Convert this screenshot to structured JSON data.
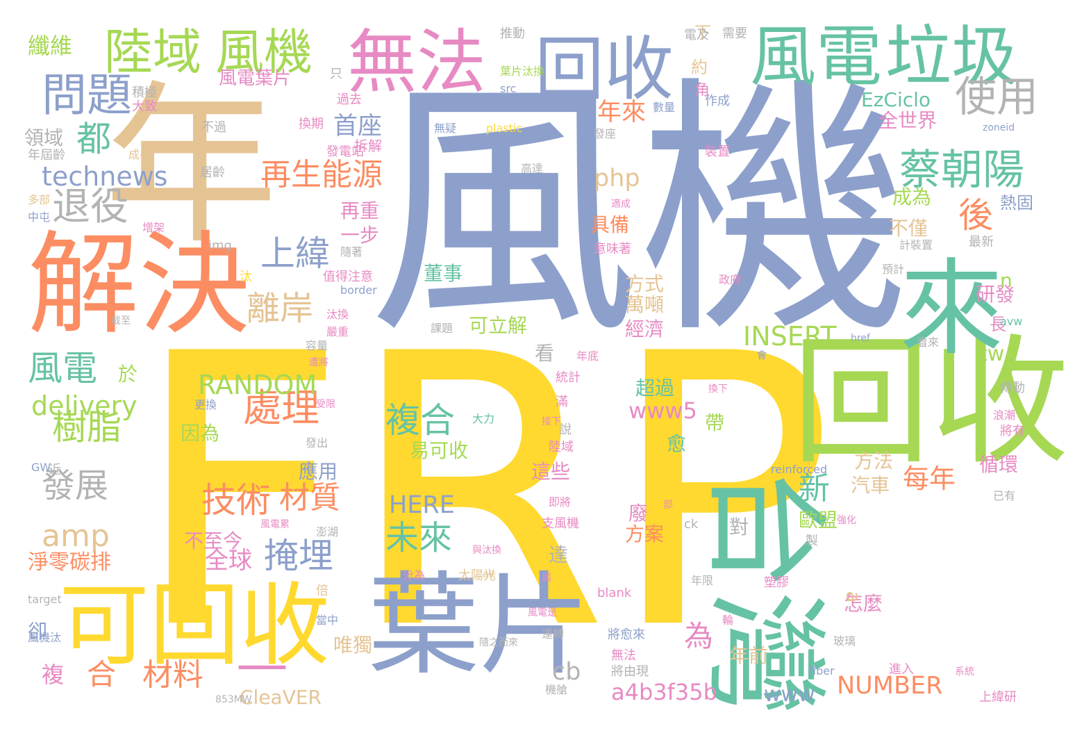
{
  "cloud": {
    "words": [
      {
        "text": "風機",
        "color": "#8da0cb"
      },
      {
        "text": "FRP",
        "color": "#ffd92f"
      },
      {
        "text": "年",
        "color": "#e5c494"
      },
      {
        "text": "台灣",
        "color": "#66c2a5"
      },
      {
        "text": "回收",
        "color": "#a6d854"
      },
      {
        "text": "解決",
        "color": "#fc8d62"
      },
      {
        "text": "葉片",
        "color": "#8da0cb"
      },
      {
        "text": "無法",
        "color": "#e78ac3"
      },
      {
        "text": "回收",
        "color": "#8da0cb"
      },
      {
        "text": "風電",
        "color": "#66c2a5"
      },
      {
        "text": "垃圾",
        "color": "#66c2a5"
      },
      {
        "text": "可回收",
        "color": "#ffd92f"
      },
      {
        "text": "陸域",
        "color": "#a6d854"
      },
      {
        "text": "風機",
        "color": "#a6d854"
      },
      {
        "text": "來",
        "color": "#66c2a5"
      },
      {
        "text": "—",
        "color": "#e78ac3"
      },
      {
        "text": "問題",
        "color": "#8da0cb"
      },
      {
        "text": "蔡朝陽",
        "color": "#66c2a5"
      },
      {
        "text": "使用",
        "color": "#b3b3b3"
      },
      {
        "text": "退役",
        "color": "#b3b3b3"
      },
      {
        "text": "都",
        "color": "#66c2a5"
      },
      {
        "text": "technews",
        "color": "#8da0cb"
      },
      {
        "text": "再生能源",
        "color": "#fc8d62"
      },
      {
        "text": "首座",
        "color": "#8da0cb"
      },
      {
        "text": "年來",
        "color": "#fc8d62"
      },
      {
        "text": "後",
        "color": "#fc8d62"
      },
      {
        "text": "上緯",
        "color": "#8da0cb"
      },
      {
        "text": "離岸",
        "color": "#e5c494"
      },
      {
        "text": "技術",
        "color": "#fc8d62"
      },
      {
        "text": "材質",
        "color": "#fc8d62"
      },
      {
        "text": "處理",
        "color": "#fc8d62"
      },
      {
        "text": "複合",
        "color": "#66c2a5"
      },
      {
        "text": "未來",
        "color": "#66c2a5"
      },
      {
        "text": "掩埋",
        "color": "#8da0cb"
      },
      {
        "text": "風電",
        "color": "#66c2a5"
      },
      {
        "text": "樹脂",
        "color": "#a6d854"
      },
      {
        "text": "發展",
        "color": "#b3b3b3"
      },
      {
        "text": "amp",
        "color": "#e5c494"
      },
      {
        "text": "delivery",
        "color": "#a6d854"
      },
      {
        "text": "RANDOM",
        "color": "#a6d854"
      },
      {
        "text": "INSERT",
        "color": "#a6d854"
      },
      {
        "text": "NUMBER",
        "color": "#fc8d62"
      },
      {
        "text": "www5",
        "color": "#e78ac3"
      },
      {
        "text": "HERE",
        "color": "#8da0cb"
      },
      {
        "text": "a4b3f35b",
        "color": "#e78ac3"
      },
      {
        "text": "www",
        "color": "#8da0cb"
      },
      {
        "text": "cb",
        "color": "#b3b3b3"
      },
      {
        "text": "為",
        "color": "#e78ac3"
      },
      {
        "text": "新",
        "color": "#66c2a5"
      },
      {
        "text": "每年",
        "color": "#fc8d62"
      },
      {
        "text": "php",
        "color": "#e5c494"
      },
      {
        "text": "合",
        "color": "#fc8d62"
      },
      {
        "text": "材料",
        "color": "#fc8d62"
      },
      {
        "text": "複",
        "color": "#e78ac3"
      },
      {
        "text": "淨零碳排",
        "color": "#fc8d62"
      },
      {
        "text": "全球",
        "color": "#e78ac3"
      },
      {
        "text": "EzCiclo",
        "color": "#66c2a5"
      },
      {
        "text": "全世界",
        "color": "#e78ac3"
      },
      {
        "text": "CleaVER",
        "color": "#e5c494"
      },
      {
        "text": "纖維",
        "color": "#a6d854"
      },
      {
        "text": "領域",
        "color": "#b3b3b3"
      },
      {
        "text": "風電葉片",
        "color": "#e78ac3"
      },
      {
        "text": "成為",
        "color": "#a6d854"
      },
      {
        "text": "具備",
        "color": "#fc8d62"
      },
      {
        "text": "方式",
        "color": "#e5c494"
      },
      {
        "text": "萬噸",
        "color": "#e5c494"
      },
      {
        "text": "經濟",
        "color": "#e78ac3"
      },
      {
        "text": "可立解",
        "color": "#a6d854"
      },
      {
        "text": "董事",
        "color": "#66c2a5"
      },
      {
        "text": "易可收",
        "color": "#a6d854"
      },
      {
        "text": "超過",
        "color": "#66c2a5"
      },
      {
        "text": "因為",
        "color": "#a6d854"
      },
      {
        "text": "方案",
        "color": "#fc8d62"
      },
      {
        "text": "這些",
        "color": "#e78ac3"
      },
      {
        "text": "應用",
        "color": "#8da0cb"
      },
      {
        "text": "歐盟",
        "color": "#a6d854"
      },
      {
        "text": "汽車",
        "color": "#e5c494"
      },
      {
        "text": "方法",
        "color": "#e5c494"
      },
      {
        "text": "循環",
        "color": "#e78ac3"
      },
      {
        "text": "研發",
        "color": "#e78ac3"
      },
      {
        "text": "怎麼",
        "color": "#e78ac3"
      },
      {
        "text": "年前",
        "color": "#e5c494"
      },
      {
        "text": "唯獨",
        "color": "#e5c494"
      },
      {
        "text": "不至今",
        "color": "#e78ac3"
      },
      {
        "text": "一步",
        "color": "#e78ac3"
      },
      {
        "text": "再重",
        "color": "#e78ac3"
      },
      {
        "text": "不僅",
        "color": "#e5c494"
      },
      {
        "text": "熱固",
        "color": "#8da0cb"
      },
      {
        "text": "tw",
        "color": "#a6d854"
      },
      {
        "text": "n",
        "color": "#a6d854"
      },
      {
        "text": "a",
        "color": "#e5c494"
      },
      {
        "text": "於",
        "color": "#a6d854"
      },
      {
        "text": "看",
        "color": "#b3b3b3"
      },
      {
        "text": "帶",
        "color": "#a6d854"
      },
      {
        "text": "愈",
        "color": "#66c2a5"
      },
      {
        "text": "達",
        "color": "#b3b3b3"
      },
      {
        "text": "廢",
        "color": "#e78ac3"
      },
      {
        "text": "對",
        "color": "#b3b3b3"
      },
      {
        "text": "卻",
        "color": "#8da0cb"
      },
      {
        "text": "長",
        "color": "#e78ac3"
      },
      {
        "text": "下",
        "color": "#e5c494"
      },
      {
        "text": "約",
        "color": "#e5c494"
      },
      {
        "text": "角",
        "color": "#e78ac3"
      },
      {
        "text": "推動",
        "color": "#b3b3b3"
      },
      {
        "text": "電及",
        "color": "#b3b3b3"
      },
      {
        "text": "需要",
        "color": "#b3b3b3"
      },
      {
        "text": "只",
        "color": "#b3b3b3"
      },
      {
        "text": "積極",
        "color": "#b3b3b3"
      },
      {
        "text": "大致",
        "color": "#e78ac3"
      },
      {
        "text": "過去",
        "color": "#e78ac3"
      },
      {
        "text": "葉片汰換",
        "color": "#a6d854"
      },
      {
        "text": "src",
        "color": "#8da0cb"
      },
      {
        "text": "數量",
        "color": "#8da0cb"
      },
      {
        "text": "作成",
        "color": "#8da0cb"
      },
      {
        "text": "換期",
        "color": "#e78ac3"
      },
      {
        "text": "不過",
        "color": "#b3b3b3"
      },
      {
        "text": "無疑",
        "color": "#8da0cb"
      },
      {
        "text": "plastic",
        "color": "#ffd92f"
      },
      {
        "text": "發座",
        "color": "#b3b3b3"
      },
      {
        "text": "zoneid",
        "color": "#8da0cb"
      },
      {
        "text": "年屆齡",
        "color": "#b3b3b3"
      },
      {
        "text": "成長",
        "color": "#e5c494"
      },
      {
        "text": "發電站",
        "color": "#e78ac3"
      },
      {
        "text": "拆解",
        "color": "#e78ac3"
      },
      {
        "text": "裝置",
        "color": "#e78ac3"
      },
      {
        "text": "居齡",
        "color": "#b3b3b3"
      },
      {
        "text": "高達",
        "color": "#b3b3b3"
      },
      {
        "text": "多部",
        "color": "#e5c494"
      },
      {
        "text": "適成",
        "color": "#e78ac3"
      },
      {
        "text": "中屯",
        "color": "#8da0cb"
      },
      {
        "text": "增架",
        "color": "#e78ac3"
      },
      {
        "text": "意味著",
        "color": "#e78ac3"
      },
      {
        "text": "最新",
        "color": "#b3b3b3"
      },
      {
        "text": "計裝置",
        "color": "#b3b3b3"
      },
      {
        "text": "img",
        "color": "#b3b3b3"
      },
      {
        "text": "隨著",
        "color": "#b3b3b3"
      },
      {
        "text": "預計",
        "color": "#b3b3b3"
      },
      {
        "text": "政府",
        "color": "#e78ac3"
      },
      {
        "text": "汰",
        "color": "#ffd92f"
      },
      {
        "text": "值得注意",
        "color": "#e78ac3"
      },
      {
        "text": "border",
        "color": "#8da0cb"
      },
      {
        "text": "截至",
        "color": "#b3b3b3"
      },
      {
        "text": "汰換",
        "color": "#e78ac3"
      },
      {
        "text": "課題",
        "color": "#b3b3b3"
      },
      {
        "text": "avw",
        "color": "#66c2a5"
      },
      {
        "text": "嚴重",
        "color": "#e78ac3"
      },
      {
        "text": "href",
        "color": "#8da0cb"
      },
      {
        "text": "看來",
        "color": "#b3b3b3"
      },
      {
        "text": "容量",
        "color": "#b3b3b3"
      },
      {
        "text": "遭將",
        "color": "#e78ac3"
      },
      {
        "text": "年底",
        "color": "#e78ac3"
      },
      {
        "text": "會",
        "color": "#8da0cb"
      },
      {
        "text": "統計",
        "color": "#e78ac3"
      },
      {
        "text": "換下",
        "color": "#e78ac3"
      },
      {
        "text": "傳動",
        "color": "#b3b3b3"
      },
      {
        "text": "更換",
        "color": "#8da0cb"
      },
      {
        "text": "受限",
        "color": "#e78ac3"
      },
      {
        "text": "滿",
        "color": "#e78ac3"
      },
      {
        "text": "浪潮",
        "color": "#e78ac3"
      },
      {
        "text": "將有",
        "color": "#e78ac3"
      },
      {
        "text": "大力",
        "color": "#66c2a5"
      },
      {
        "text": "接下",
        "color": "#e78ac3"
      },
      {
        "text": "說",
        "color": "#b3b3b3"
      },
      {
        "text": "陸域",
        "color": "#e78ac3"
      },
      {
        "text": "發出",
        "color": "#b3b3b3"
      },
      {
        "text": "GW",
        "color": "#8da0cb"
      },
      {
        "text": "近",
        "color": "#b3b3b3"
      },
      {
        "text": "reinforced",
        "color": "#8da0cb"
      },
      {
        "text": "部",
        "color": "#e78ac3"
      },
      {
        "text": "已有",
        "color": "#b3b3b3"
      },
      {
        "text": "即將",
        "color": "#e78ac3"
      },
      {
        "text": "ck",
        "color": "#b3b3b3"
      },
      {
        "text": "支風機",
        "color": "#e78ac3"
      },
      {
        "text": "風電累",
        "color": "#e78ac3"
      },
      {
        "text": "澎湖",
        "color": "#b3b3b3"
      },
      {
        "text": "強化",
        "color": "#e78ac3"
      },
      {
        "text": "製",
        "color": "#b3b3b3"
      },
      {
        "text": "與汰換",
        "color": "#e78ac3"
      },
      {
        "text": "分為",
        "color": "#e78ac3"
      },
      {
        "text": "太陽光",
        "color": "#e5c494"
      },
      {
        "text": "alt",
        "color": "#e5c494"
      },
      {
        "text": "屆",
        "color": "#e78ac3"
      },
      {
        "text": "年限",
        "color": "#b3b3b3"
      },
      {
        "text": "塑膠",
        "color": "#e78ac3"
      },
      {
        "text": "倍",
        "color": "#e5c494"
      },
      {
        "text": "blank",
        "color": "#e78ac3"
      },
      {
        "text": "target",
        "color": "#b3b3b3"
      },
      {
        "text": "當中",
        "color": "#8da0cb"
      },
      {
        "text": "風電是",
        "color": "#e78ac3"
      },
      {
        "text": "輪",
        "color": "#e78ac3"
      },
      {
        "text": "風機汰",
        "color": "#8da0cb"
      },
      {
        "text": "隨之而來",
        "color": "#b3b3b3"
      },
      {
        "text": "運轉",
        "color": "#b3b3b3"
      },
      {
        "text": "將愈來",
        "color": "#8da0cb"
      },
      {
        "text": "無法",
        "color": "#e78ac3"
      },
      {
        "text": "玻璃",
        "color": "#b3b3b3"
      },
      {
        "text": "進入",
        "color": "#e78ac3"
      },
      {
        "text": "將由現",
        "color": "#b3b3b3"
      },
      {
        "text": "fiber",
        "color": "#8da0cb"
      },
      {
        "text": "系統",
        "color": "#e78ac3"
      },
      {
        "text": "機艙",
        "color": "#b3b3b3"
      },
      {
        "text": "上緯研",
        "color": "#e78ac3"
      },
      {
        "text": "853MW",
        "color": "#b3b3b3"
      }
    ]
  }
}
